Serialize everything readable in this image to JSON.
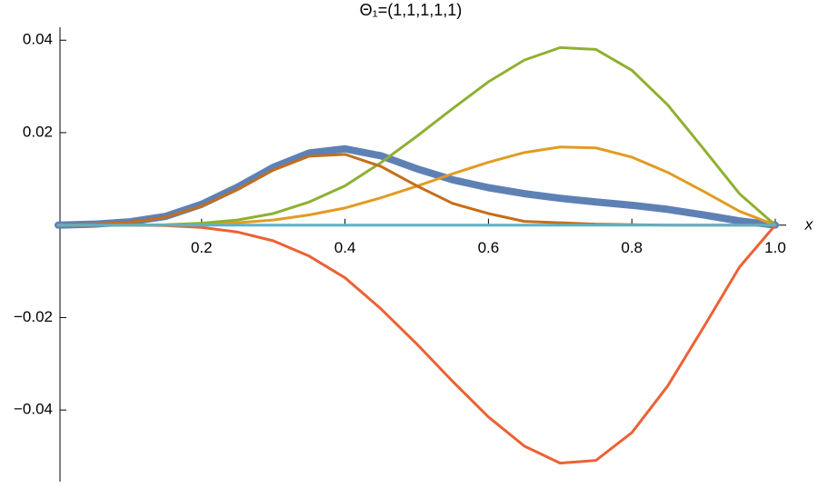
{
  "chart_data": {
    "type": "line",
    "title": "Θ₁=(1,1,1,1,1)",
    "x_label": "x",
    "x": [
      0,
      0.05,
      0.1,
      0.15,
      0.2,
      0.25,
      0.3,
      0.35,
      0.4,
      0.45,
      0.5,
      0.55,
      0.6,
      0.65,
      0.7,
      0.75,
      0.8,
      0.85,
      0.9,
      0.95,
      1.0
    ],
    "series": [
      {
        "color": "#5e81b5",
        "values": [
          0,
          0.0002,
          0.0007,
          0.0019,
          0.0045,
          0.0082,
          0.0125,
          0.0156,
          0.0165,
          0.015,
          0.0122,
          0.0098,
          0.0081,
          0.0068,
          0.0058,
          0.005,
          0.0043,
          0.0034,
          0.0022,
          0.0009,
          0
        ]
      },
      {
        "color": "#e19c24",
        "values": [
          0,
          0,
          0,
          0,
          0.0002,
          0.0005,
          0.0011,
          0.0022,
          0.0037,
          0.0059,
          0.0084,
          0.0111,
          0.0136,
          0.0157,
          0.0169,
          0.0167,
          0.0147,
          0.0114,
          0.0073,
          0.003,
          0
        ]
      },
      {
        "color": "#8fb032",
        "values": [
          0,
          0,
          0,
          0.0001,
          0.0004,
          0.0011,
          0.0025,
          0.005,
          0.0085,
          0.0135,
          0.0192,
          0.0252,
          0.031,
          0.0357,
          0.0384,
          0.038,
          0.0335,
          0.026,
          0.0165,
          0.0068,
          0
        ]
      },
      {
        "color": "#eb6235",
        "values": [
          0,
          0,
          0,
          -0.0001,
          -0.0005,
          -0.0015,
          -0.0034,
          -0.0067,
          -0.0114,
          -0.0181,
          -0.0257,
          -0.0338,
          -0.0415,
          -0.0478,
          -0.0515,
          -0.0509,
          -0.0449,
          -0.0348,
          -0.0221,
          -0.0091,
          0
        ]
      },
      {
        "color": "#c56e1a",
        "values": [
          0,
          0.0002,
          0.0006,
          0.0017,
          0.0041,
          0.0077,
          0.0119,
          0.0149,
          0.0153,
          0.0127,
          0.0085,
          0.0047,
          0.0025,
          0.0008,
          0.0005,
          0.0002,
          0.0001,
          0,
          0,
          0,
          0
        ]
      },
      {
        "color": "#5ab3c8",
        "values": [
          0,
          0,
          0,
          0,
          0,
          0,
          0,
          0,
          0,
          0,
          0,
          0,
          0,
          0,
          0,
          0,
          0,
          0,
          0,
          0,
          0
        ]
      }
    ],
    "xlim": [
      0,
      1.0
    ],
    "xticks": [
      0.2,
      0.4,
      0.6,
      0.8,
      {
        "value": 1.0,
        "label": "1.0"
      }
    ],
    "ylim": [
      -0.0555,
      0.0428
    ],
    "yticks": [
      {
        "value": -0.04,
        "label": "−0.04"
      },
      {
        "value": -0.02,
        "label": "−0.02"
      },
      0.02,
      0.04
    ]
  }
}
